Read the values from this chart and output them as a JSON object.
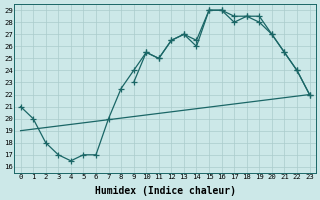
{
  "xlabel": "Humidex (Indice chaleur)",
  "bg_color": "#cce8e8",
  "grid_color": "#aacccc",
  "line_color": "#1a6666",
  "marker": "+",
  "markersize": 4,
  "linewidth": 0.9,
  "xlim": [
    -0.5,
    23.5
  ],
  "ylim": [
    15.5,
    29.5
  ],
  "xticks": [
    0,
    1,
    2,
    3,
    4,
    5,
    6,
    7,
    8,
    9,
    10,
    11,
    12,
    13,
    14,
    15,
    16,
    17,
    18,
    19,
    20,
    21,
    22,
    23
  ],
  "yticks": [
    16,
    17,
    18,
    19,
    20,
    21,
    22,
    23,
    24,
    25,
    26,
    27,
    28,
    29
  ],
  "series1_x": [
    0,
    1,
    2,
    3,
    4,
    5,
    6,
    7,
    8,
    9,
    10,
    11,
    12,
    13,
    14,
    15,
    16,
    17,
    18,
    19,
    20,
    21,
    22,
    23
  ],
  "series1_y": [
    21,
    20,
    18,
    17,
    16.5,
    17,
    17,
    20,
    22.5,
    24,
    25.5,
    25,
    26.5,
    27,
    26,
    29,
    29,
    28,
    28.5,
    28,
    27,
    25.5,
    24,
    22
  ],
  "series2_x": [
    9,
    10,
    11,
    12,
    13,
    14,
    15,
    16,
    17,
    18,
    19,
    20,
    21,
    22,
    23
  ],
  "series2_y": [
    23,
    25.5,
    25,
    26.5,
    27,
    26.5,
    29,
    29,
    28.5,
    28.5,
    28.5,
    27,
    25.5,
    24,
    22
  ],
  "series3_x": [
    0,
    23
  ],
  "series3_y": [
    19,
    22
  ],
  "tick_fontsize": 5.2,
  "label_fontsize": 7.0
}
